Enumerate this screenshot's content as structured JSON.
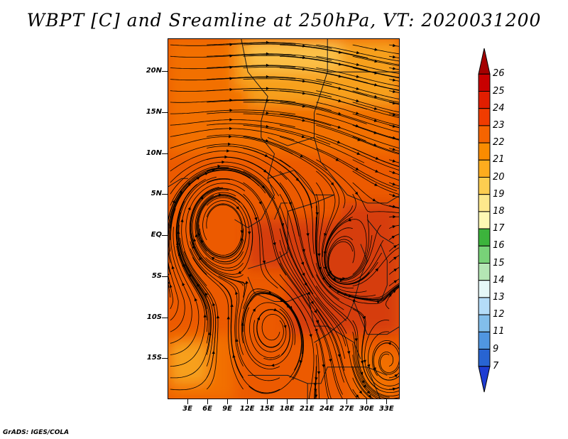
{
  "title": "WBPT [C] and Sreamline at 250hPa, VT: 2020031200",
  "footer": "GrADS: IGES/COLA",
  "map": {
    "lon_range": [
      0,
      35
    ],
    "lat_range": [
      -20,
      24
    ],
    "lat_ticks": [
      {
        "lat": 20,
        "label": "20N"
      },
      {
        "lat": 15,
        "label": "15N"
      },
      {
        "lat": 10,
        "label": "10N"
      },
      {
        "lat": 5,
        "label": "5N"
      },
      {
        "lat": 0,
        "label": "EQ"
      },
      {
        "lat": -5,
        "label": "5S"
      },
      {
        "lat": -10,
        "label": "10S"
      },
      {
        "lat": -15,
        "label": "15S"
      }
    ],
    "lon_ticks": [
      {
        "lon": 3,
        "label": "3E"
      },
      {
        "lon": 6,
        "label": "6E"
      },
      {
        "lon": 9,
        "label": "9E"
      },
      {
        "lon": 12,
        "label": "12E"
      },
      {
        "lon": 15,
        "label": "15E"
      },
      {
        "lon": 18,
        "label": "18E"
      },
      {
        "lon": 21,
        "label": "21E"
      },
      {
        "lon": 24,
        "label": "24E"
      },
      {
        "lon": 27,
        "label": "27E"
      },
      {
        "lon": 30,
        "label": "30E"
      },
      {
        "lon": 33,
        "label": "33E"
      }
    ]
  },
  "colorbar": {
    "levels": [
      "26",
      "25",
      "24",
      "23",
      "22",
      "21",
      "20",
      "19",
      "18",
      "17",
      "16",
      "15",
      "14",
      "13",
      "12",
      "11",
      "9",
      "7"
    ],
    "colors": [
      "#a50000",
      "#c80000",
      "#e11e00",
      "#f03c00",
      "#f56400",
      "#fa8c00",
      "#fdac1e",
      "#fdcd50",
      "#fde88c",
      "#fdf8b4",
      "#3cb43c",
      "#78d278",
      "#b4e6b4",
      "#e6f8f8",
      "#b4dcf8",
      "#82beeb",
      "#5096e1",
      "#2864d2",
      "#1e3cd2"
    ]
  },
  "field_colors": {
    "deep": "#d63c0a",
    "main": "#ec5a00",
    "warm": "#f27000",
    "light": "#f7a01e",
    "pale": "#fbc046"
  },
  "streamline_color": "#000000",
  "border_color": "#1a1a1a"
}
